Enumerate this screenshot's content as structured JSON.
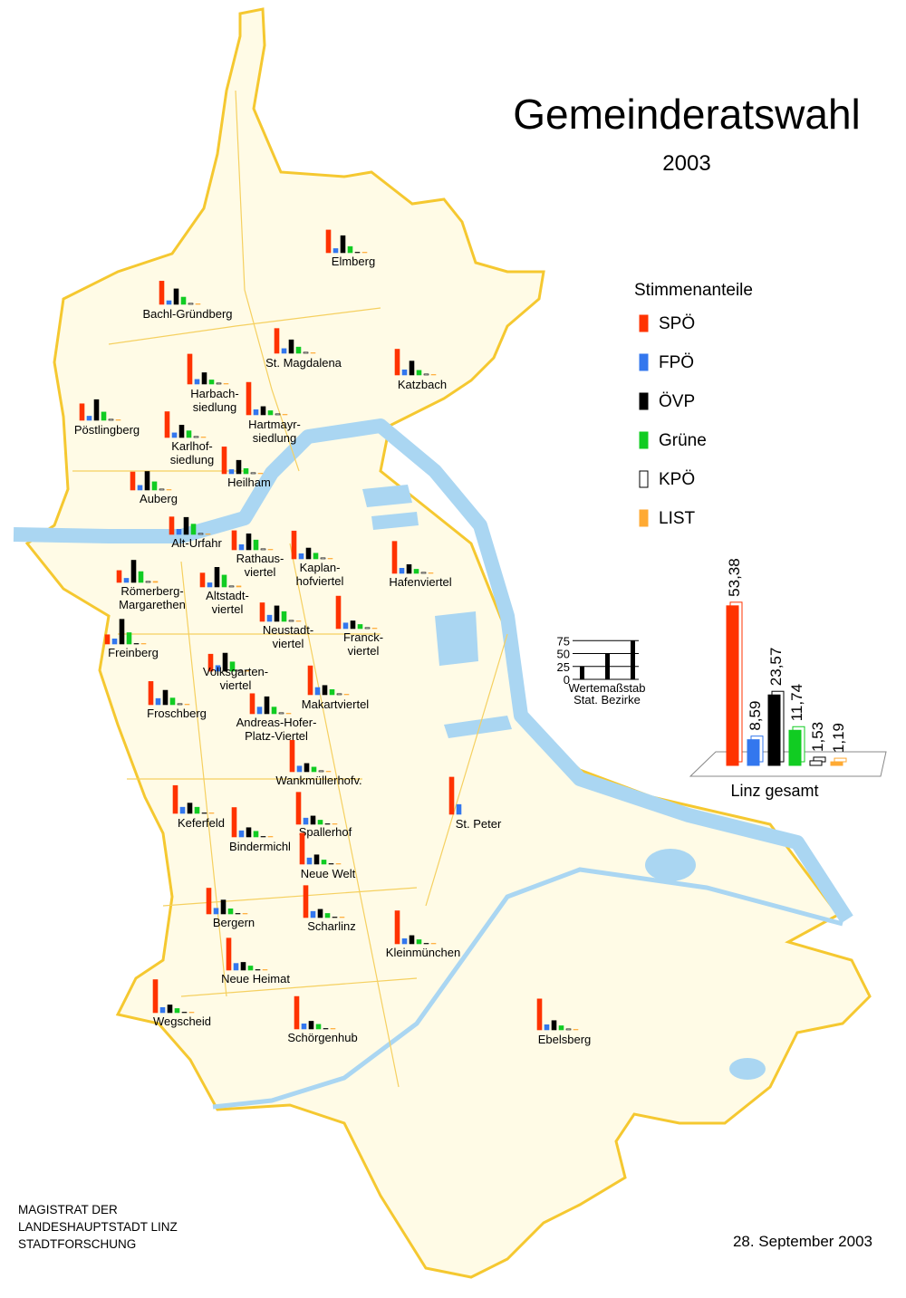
{
  "title": "Gemeinderatswahl",
  "subtitle": "2003",
  "legend": {
    "title": "Stimmenanteile"
  },
  "parties": [
    {
      "name": "SPÖ",
      "color": "#ff3300"
    },
    {
      "name": "FPÖ",
      "color": "#3377ee"
    },
    {
      "name": "ÖVP",
      "color": "#000000"
    },
    {
      "name": "Grüne",
      "color": "#11cc22"
    },
    {
      "name": "KPÖ",
      "color": "#ffffff"
    },
    {
      "name": "LIST",
      "color": "#ffaa33"
    }
  ],
  "districts": [
    {
      "label": [
        "Elmberg"
      ],
      "values": [
        44,
        8,
        33,
        12,
        1,
        1
      ]
    },
    {
      "label": [
        "Bachl-Gründberg"
      ],
      "values": [
        45,
        7,
        30,
        14,
        2,
        1
      ]
    },
    {
      "label": [
        "St. Magdalena"
      ],
      "values": [
        48,
        9,
        26,
        12,
        2,
        1
      ]
    },
    {
      "label": [
        "Katzbach"
      ],
      "values": [
        50,
        10,
        27,
        9,
        2,
        1
      ]
    },
    {
      "label": [
        "Harbach-",
        "siedlung"
      ],
      "values": [
        58,
        9,
        22,
        8,
        2,
        1
      ]
    },
    {
      "label": [
        "Pöstlingberg"
      ],
      "values": [
        32,
        8,
        40,
        16,
        2,
        1
      ]
    },
    {
      "label": [
        "Hartmayr-",
        "siedlung"
      ],
      "values": [
        63,
        10,
        16,
        8,
        2,
        1
      ]
    },
    {
      "label": [
        "Karlhof-",
        "siedlung"
      ],
      "values": [
        50,
        9,
        24,
        13,
        2,
        1
      ]
    },
    {
      "label": [
        "Heilham"
      ],
      "values": [
        52,
        8,
        26,
        10,
        2,
        1
      ]
    },
    {
      "label": [
        "Auberg"
      ],
      "values": [
        35,
        9,
        36,
        16,
        2,
        1
      ]
    },
    {
      "label": [
        "Alt-Urfahr"
      ],
      "values": [
        34,
        10,
        33,
        20,
        2,
        1
      ]
    },
    {
      "label": [
        "Rathaus-",
        "viertel"
      ],
      "values": [
        37,
        10,
        31,
        19,
        2,
        1
      ]
    },
    {
      "label": [
        "Kaplan-",
        "hofviertel"
      ],
      "values": [
        54,
        10,
        21,
        11,
        2,
        1
      ]
    },
    {
      "label": [
        "Hafenviertel"
      ],
      "values": [
        62,
        10,
        17,
        8,
        2,
        1
      ]
    },
    {
      "label": [
        "Römerberg-",
        "Margarethen"
      ],
      "values": [
        23,
        8,
        43,
        21,
        2,
        2
      ]
    },
    {
      "label": [
        "Altstadt-",
        "viertel"
      ],
      "values": [
        27,
        8,
        38,
        23,
        2,
        2
      ]
    },
    {
      "label": [
        "Neustadt-",
        "viertel"
      ],
      "values": [
        36,
        12,
        30,
        19,
        2,
        1
      ]
    },
    {
      "label": [
        "Franck-",
        "viertel"
      ],
      "values": [
        63,
        11,
        15,
        8,
        2,
        1
      ]
    },
    {
      "label": [
        "Freinberg"
      ],
      "values": [
        18,
        10,
        48,
        22,
        1,
        1
      ]
    },
    {
      "label": [
        "Volksgarten-",
        "viertel"
      ],
      "values": [
        33,
        11,
        35,
        18,
        2,
        1
      ]
    },
    {
      "label": [
        "Froschberg"
      ],
      "values": [
        45,
        12,
        28,
        13,
        2,
        1
      ]
    },
    {
      "label": [
        "Andreas-Hofer-",
        "Platz-Viertel"
      ],
      "values": [
        39,
        13,
        33,
        13,
        2,
        1
      ]
    },
    {
      "label": [
        "Makartviertel"
      ],
      "values": [
        56,
        14,
        18,
        10,
        2,
        1
      ]
    },
    {
      "label": [
        "Wankmüllerhofv."
      ],
      "values": [
        61,
        11,
        16,
        9,
        2,
        1
      ]
    },
    {
      "label": [
        "Keferfeld"
      ],
      "values": [
        54,
        12,
        20,
        12,
        1,
        1
      ]
    },
    {
      "label": [
        "Spallerhof"
      ],
      "values": [
        62,
        12,
        16,
        8,
        1,
        1
      ]
    },
    {
      "label": [
        "Bindermichl"
      ],
      "values": [
        57,
        12,
        18,
        11,
        1,
        1
      ]
    },
    {
      "label": [
        "Neue Welt"
      ],
      "values": [
        60,
        12,
        18,
        8,
        1,
        1
      ]
    },
    {
      "label": [
        "Bergern"
      ],
      "values": [
        50,
        11,
        27,
        10,
        1,
        1
      ]
    },
    {
      "label": [
        "Scharlinz"
      ],
      "values": [
        62,
        12,
        16,
        8,
        1,
        1
      ]
    },
    {
      "label": [
        "Kleinmünchen"
      ],
      "values": [
        64,
        10,
        16,
        8,
        1,
        1
      ]
    },
    {
      "label": [
        "Neue Heimat"
      ],
      "values": [
        62,
        13,
        15,
        8,
        1,
        1
      ]
    },
    {
      "label": [
        "Wegscheid"
      ],
      "values": [
        64,
        10,
        15,
        8,
        1,
        1
      ]
    },
    {
      "label": [
        "Schörgenhub"
      ],
      "values": [
        63,
        10,
        15,
        9,
        1,
        1
      ]
    },
    {
      "label": [
        "St. Peter"
      ],
      "values": [
        72,
        19,
        0,
        0,
        0,
        0
      ]
    },
    {
      "label": [
        "Ebelsberg"
      ],
      "values": [
        60,
        10,
        18,
        8,
        2,
        1
      ]
    }
  ],
  "scale": {
    "label": [
      "Wertemaßstab",
      "Stat. Bezirke"
    ],
    "ticks": [
      0,
      25,
      50,
      75
    ],
    "values": [
      25,
      50,
      75
    ]
  },
  "total": {
    "label": "Linz gesamt",
    "values": [
      53.38,
      8.59,
      23.57,
      11.74,
      1.53,
      1.19
    ],
    "value_labels": [
      "53,38",
      "8,59",
      "23,57",
      "11,74",
      "1,53",
      "1,19"
    ]
  },
  "footer": {
    "lines": [
      "MAGISTRAT  DER",
      "LANDESHAUPTSTADT  LINZ",
      "STADTFORSCHUNG"
    ],
    "date": "28. September 2003"
  }
}
